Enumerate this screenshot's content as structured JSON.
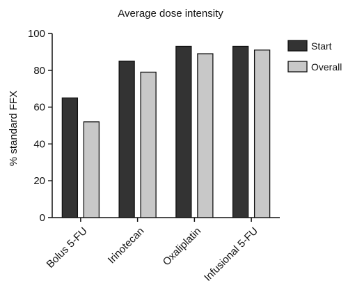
{
  "chart_data": {
    "type": "bar",
    "title": "Average dose intensity",
    "xlabel": "",
    "ylabel": "% standard FFX",
    "categories": [
      "Bolus 5-FU",
      "Irinotecan",
      "Oxaliplatin",
      "Infusional 5-FU"
    ],
    "series": [
      {
        "name": "Start",
        "color": "#333333",
        "values": [
          65,
          85,
          93,
          93
        ]
      },
      {
        "name": "Overall",
        "color": "#c8c8c8",
        "values": [
          52,
          79,
          89,
          91
        ]
      }
    ],
    "ylim": [
      0,
      100
    ],
    "yticks": [
      0,
      20,
      40,
      60,
      80,
      100
    ],
    "grid": false,
    "legend_position": "top-right"
  }
}
